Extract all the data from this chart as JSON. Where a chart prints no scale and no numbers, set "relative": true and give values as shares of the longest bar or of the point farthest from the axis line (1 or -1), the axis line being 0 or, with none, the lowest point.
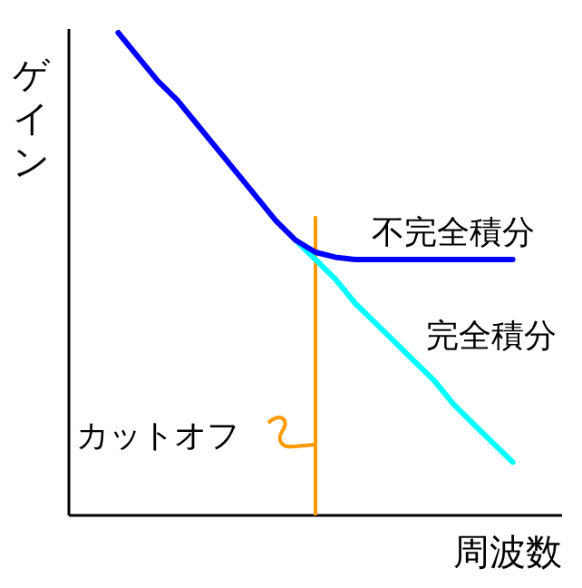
{
  "chart_data": {
    "type": "line",
    "relative": true,
    "xlabel": "周波数",
    "ylabel": "ゲイン",
    "categories": [
      null,
      null,
      null,
      null,
      null,
      null,
      null,
      null,
      null,
      null,
      null,
      null,
      null,
      null,
      null,
      null,
      null,
      null,
      null,
      null,
      null,
      null,
      null,
      null,
      null
    ],
    "series": [
      {
        "name": "不完全積分",
        "color": "#0000ff",
        "values": [
          null,
          null,
          1.0,
          0.95,
          0.9,
          0.86,
          0.81,
          0.76,
          0.71,
          0.66,
          0.61,
          0.57,
          0.545,
          0.535,
          0.53,
          0.53,
          0.53,
          0.53,
          0.53,
          0.53,
          0.53,
          0.53,
          0.53,
          null,
          null
        ]
      },
      {
        "name": "完全積分",
        "color": "#00ffff",
        "values": [
          null,
          null,
          null,
          null,
          null,
          null,
          null,
          null,
          null,
          null,
          null,
          0.57,
          0.53,
          0.49,
          0.44,
          0.4,
          0.36,
          0.32,
          0.28,
          0.23,
          0.19,
          0.15,
          0.11,
          null,
          null
        ]
      }
    ],
    "annotations": [
      "カットオフ"
    ],
    "marker": "none",
    "line_style": "solid"
  }
}
